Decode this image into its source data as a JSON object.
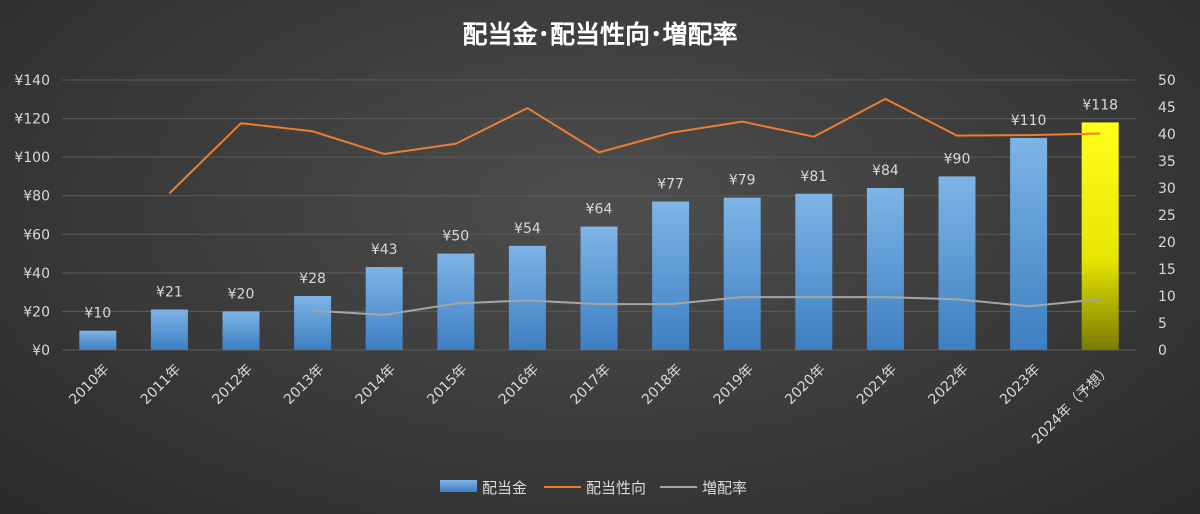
{
  "chart_data": {
    "type": "bar",
    "title": "配当金･配当性向･増配率",
    "categories": [
      "2010年",
      "2011年",
      "2012年",
      "2013年",
      "2014年",
      "2015年",
      "2016年",
      "2017年",
      "2018年",
      "2019年",
      "2020年",
      "2021年",
      "2022年",
      "2023年",
      "2024年（予想）"
    ],
    "y_left": {
      "ylim": [
        0,
        140
      ],
      "ticks": [
        "¥0",
        "¥20",
        "¥40",
        "¥60",
        "¥80",
        "¥100",
        "¥120",
        "¥140"
      ]
    },
    "y_right": {
      "ylim": [
        0,
        50
      ],
      "ticks": [
        "0",
        "5",
        "10",
        "15",
        "20",
        "25",
        "30",
        "35",
        "40",
        "45",
        "50"
      ]
    },
    "series": [
      {
        "name": "配当金",
        "kind": "bar",
        "axis": "left",
        "values": [
          10,
          21,
          20,
          28,
          43,
          50,
          54,
          64,
          77,
          79,
          81,
          84,
          90,
          110,
          118
        ],
        "labels": [
          "¥10",
          "¥21",
          "¥20",
          "¥28",
          "¥43",
          "¥50",
          "¥54",
          "¥64",
          "¥77",
          "¥79",
          "¥81",
          "¥84",
          "¥90",
          "¥110",
          "¥118"
        ],
        "color": "#5b9bd5",
        "highlight_last_color": "#ffff00"
      },
      {
        "name": "配当性向",
        "kind": "line",
        "axis": "right",
        "values": [
          null,
          29,
          42,
          40.5,
          36.3,
          38.2,
          44.8,
          36.6,
          40.2,
          42.3,
          39.5,
          46.5,
          39.7,
          39.8,
          40.1
        ],
        "color": "#ed7d31"
      },
      {
        "name": "増配率",
        "kind": "line",
        "axis": "right",
        "values": [
          null,
          null,
          null,
          7.3,
          6.5,
          8.6,
          9.2,
          8.5,
          8.5,
          9.8,
          9.8,
          9.8,
          9.4,
          8.1,
          9.4
        ],
        "color": "#a5a5a5"
      }
    ],
    "legend_position": "bottom",
    "grid": true
  }
}
